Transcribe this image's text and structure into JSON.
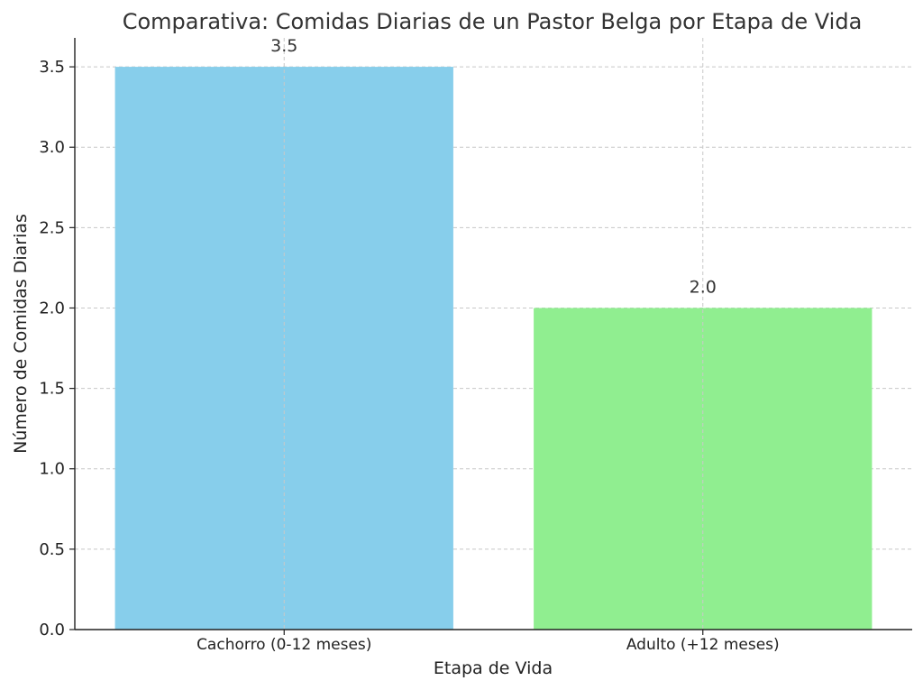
{
  "chart_data": {
    "type": "bar",
    "title": "Comparativa: Comidas Diarias de un Pastor Belga por Etapa de Vida",
    "xlabel": "Etapa de Vida",
    "ylabel": "Número de Comidas Diarias",
    "categories": [
      "Cachorro (0-12 meses)",
      "Adulto (+12 meses)"
    ],
    "values": [
      3.5,
      2.0
    ],
    "value_labels": [
      "3.5",
      "2.0"
    ],
    "colors": [
      "#87ceeb",
      "#90ee90"
    ],
    "ylim": [
      0,
      3.68
    ],
    "yticks": [
      0.0,
      0.5,
      1.0,
      1.5,
      2.0,
      2.5,
      3.0,
      3.5
    ],
    "ytick_labels": [
      "0.0",
      "0.5",
      "1.0",
      "1.5",
      "2.0",
      "2.5",
      "3.0",
      "3.5"
    ],
    "grid": true,
    "legend": "none"
  }
}
